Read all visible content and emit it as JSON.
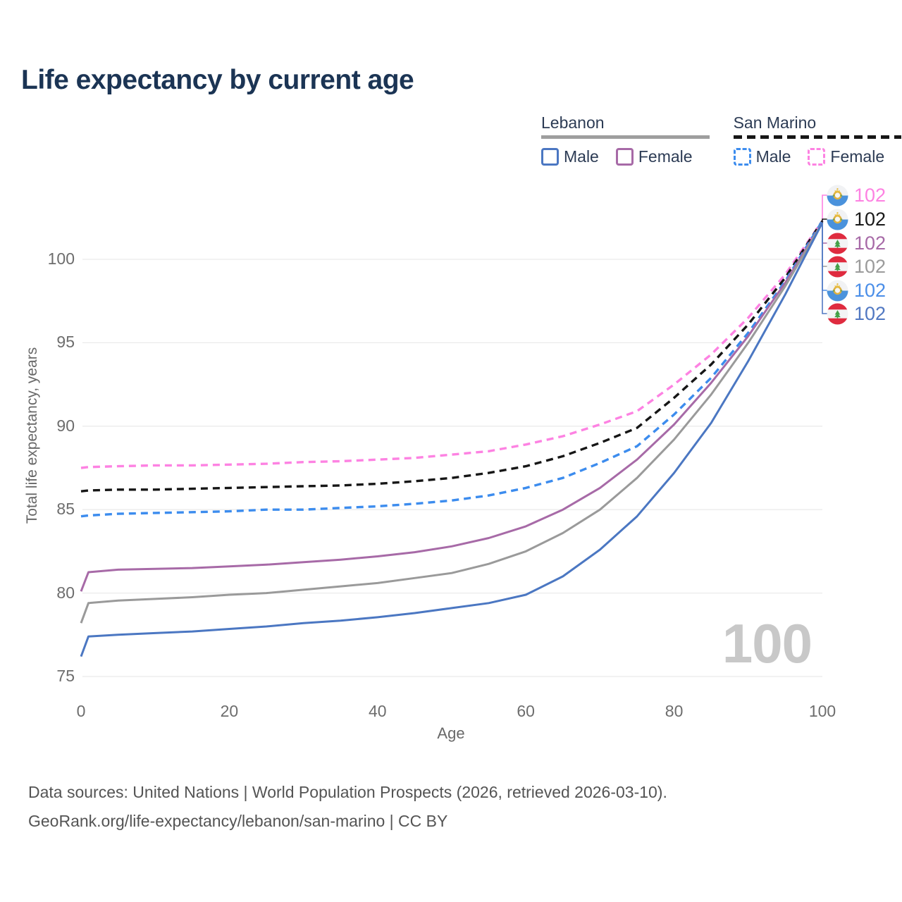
{
  "title": "Life expectancy by current age",
  "legend": {
    "groups": [
      {
        "label": "Lebanon",
        "line_color": "#9e9e9e",
        "line_style": "solid",
        "items": [
          {
            "label": "Male",
            "color": "#4b77c2",
            "dashed": false
          },
          {
            "label": "Female",
            "color": "#a76aa7",
            "dashed": false
          }
        ]
      },
      {
        "label": "San Marino",
        "line_color": "#161616",
        "line_style": "dashed",
        "items": [
          {
            "label": "Male",
            "color": "#3c8cee",
            "dashed": true
          },
          {
            "label": "Female",
            "color": "#fd82e2",
            "dashed": true
          }
        ]
      }
    ]
  },
  "watermark": "100",
  "footer": {
    "line1": "Data sources: United Nations | World Population Prospects (2026, retrieved 2026-03-10).",
    "line2": "GeoRank.org/life-expectancy/lebanon/san-marino | CC BY"
  },
  "chart_data": {
    "type": "line",
    "title": "Life expectancy by current age",
    "xlabel": "Age",
    "ylabel": "Total life expectancy, years",
    "xlim": [
      0,
      100
    ],
    "ylim": [
      75,
      103
    ],
    "xticks": [
      0,
      20,
      40,
      60,
      80,
      100
    ],
    "yticks": [
      75,
      80,
      85,
      90,
      95,
      100
    ],
    "grid": "horizontal",
    "legend_position": "top-right",
    "series": [
      {
        "name": "San Marino Female",
        "country": "San Marino",
        "sex": "Female",
        "style": "dashed",
        "color": "#fd82e2",
        "end_value": 102,
        "points": [
          [
            0,
            87.5
          ],
          [
            1,
            87.55
          ],
          [
            5,
            87.6
          ],
          [
            10,
            87.65
          ],
          [
            15,
            87.65
          ],
          [
            20,
            87.7
          ],
          [
            25,
            87.75
          ],
          [
            30,
            87.85
          ],
          [
            35,
            87.9
          ],
          [
            40,
            88.0
          ],
          [
            45,
            88.1
          ],
          [
            50,
            88.3
          ],
          [
            55,
            88.5
          ],
          [
            60,
            88.9
          ],
          [
            65,
            89.4
          ],
          [
            70,
            90.1
          ],
          [
            75,
            90.9
          ],
          [
            80,
            92.5
          ],
          [
            85,
            94.3
          ],
          [
            90,
            96.5
          ],
          [
            95,
            99.1
          ],
          [
            100,
            102.3
          ]
        ]
      },
      {
        "name": "San Marino Total",
        "country": "San Marino",
        "sex": "Both",
        "style": "dashed",
        "color": "#161616",
        "end_value": 102,
        "points": [
          [
            0,
            86.1
          ],
          [
            1,
            86.15
          ],
          [
            5,
            86.2
          ],
          [
            10,
            86.2
          ],
          [
            15,
            86.25
          ],
          [
            20,
            86.3
          ],
          [
            25,
            86.35
          ],
          [
            30,
            86.4
          ],
          [
            35,
            86.45
          ],
          [
            40,
            86.55
          ],
          [
            45,
            86.7
          ],
          [
            50,
            86.9
          ],
          [
            55,
            87.2
          ],
          [
            60,
            87.6
          ],
          [
            65,
            88.2
          ],
          [
            70,
            89.0
          ],
          [
            75,
            89.9
          ],
          [
            80,
            91.7
          ],
          [
            85,
            93.7
          ],
          [
            90,
            96.1
          ],
          [
            95,
            98.9
          ],
          [
            100,
            102.3
          ]
        ]
      },
      {
        "name": "San Marino Male",
        "country": "San Marino",
        "sex": "Male",
        "style": "dashed",
        "color": "#3c8cee",
        "end_value": 102,
        "points": [
          [
            0,
            84.6
          ],
          [
            1,
            84.65
          ],
          [
            5,
            84.75
          ],
          [
            10,
            84.8
          ],
          [
            15,
            84.85
          ],
          [
            20,
            84.9
          ],
          [
            25,
            85.0
          ],
          [
            30,
            85.0
          ],
          [
            35,
            85.1
          ],
          [
            40,
            85.2
          ],
          [
            45,
            85.35
          ],
          [
            50,
            85.55
          ],
          [
            55,
            85.85
          ],
          [
            60,
            86.3
          ],
          [
            65,
            86.9
          ],
          [
            70,
            87.8
          ],
          [
            75,
            88.8
          ],
          [
            80,
            90.7
          ],
          [
            85,
            92.9
          ],
          [
            90,
            95.6
          ],
          [
            95,
            98.7
          ],
          [
            100,
            102.3
          ]
        ]
      },
      {
        "name": "Lebanon Female",
        "country": "Lebanon",
        "sex": "Female",
        "style": "solid",
        "color": "#a76aa7",
        "end_value": 102,
        "points": [
          [
            0,
            80.1
          ],
          [
            1,
            81.25
          ],
          [
            5,
            81.4
          ],
          [
            10,
            81.45
          ],
          [
            15,
            81.5
          ],
          [
            20,
            81.6
          ],
          [
            25,
            81.7
          ],
          [
            30,
            81.85
          ],
          [
            35,
            82.0
          ],
          [
            40,
            82.2
          ],
          [
            45,
            82.45
          ],
          [
            50,
            82.8
          ],
          [
            55,
            83.3
          ],
          [
            60,
            84.0
          ],
          [
            65,
            85.0
          ],
          [
            70,
            86.3
          ],
          [
            75,
            88.0
          ],
          [
            80,
            90.1
          ],
          [
            85,
            92.6
          ],
          [
            90,
            95.4
          ],
          [
            95,
            98.6
          ],
          [
            100,
            102.2
          ]
        ]
      },
      {
        "name": "Lebanon Total",
        "country": "Lebanon",
        "sex": "Both",
        "style": "solid",
        "color": "#9a9a9a",
        "end_value": 102,
        "points": [
          [
            0,
            78.2
          ],
          [
            1,
            79.4
          ],
          [
            5,
            79.55
          ],
          [
            10,
            79.65
          ],
          [
            15,
            79.75
          ],
          [
            20,
            79.9
          ],
          [
            25,
            80.0
          ],
          [
            30,
            80.2
          ],
          [
            35,
            80.4
          ],
          [
            40,
            80.6
          ],
          [
            45,
            80.9
          ],
          [
            50,
            81.2
          ],
          [
            55,
            81.75
          ],
          [
            60,
            82.5
          ],
          [
            65,
            83.6
          ],
          [
            70,
            85.0
          ],
          [
            75,
            86.9
          ],
          [
            80,
            89.2
          ],
          [
            85,
            91.9
          ],
          [
            90,
            95.0
          ],
          [
            95,
            98.4
          ],
          [
            100,
            102.2
          ]
        ]
      },
      {
        "name": "Lebanon Male",
        "country": "Lebanon",
        "sex": "Male",
        "style": "solid",
        "color": "#4b77c2",
        "end_value": 102,
        "points": [
          [
            0,
            76.2
          ],
          [
            1,
            77.4
          ],
          [
            5,
            77.5
          ],
          [
            10,
            77.6
          ],
          [
            15,
            77.7
          ],
          [
            20,
            77.85
          ],
          [
            25,
            78.0
          ],
          [
            30,
            78.2
          ],
          [
            35,
            78.35
          ],
          [
            40,
            78.55
          ],
          [
            45,
            78.8
          ],
          [
            50,
            79.1
          ],
          [
            55,
            79.4
          ],
          [
            60,
            79.9
          ],
          [
            65,
            81.0
          ],
          [
            70,
            82.6
          ],
          [
            75,
            84.6
          ],
          [
            80,
            87.2
          ],
          [
            85,
            90.2
          ],
          [
            90,
            93.9
          ],
          [
            95,
            97.9
          ],
          [
            100,
            102.2
          ]
        ]
      }
    ],
    "end_labels": [
      {
        "value": "102",
        "color": "#fd82e2",
        "flag": "san-marino",
        "series": "San Marino Female"
      },
      {
        "value": "102",
        "color": "#1a1a1a",
        "flag": "san-marino",
        "series": "San Marino Total"
      },
      {
        "value": "102",
        "color": "#a76aa7",
        "flag": "lebanon",
        "series": "Lebanon Female"
      },
      {
        "value": "102",
        "color": "#9b9b9b",
        "flag": "lebanon",
        "series": "Lebanon Total"
      },
      {
        "value": "102",
        "color": "#4a8ee8",
        "flag": "san-marino",
        "series": "San Marino Male"
      },
      {
        "value": "102",
        "color": "#5178c2",
        "flag": "lebanon",
        "series": "Lebanon Male"
      }
    ]
  }
}
